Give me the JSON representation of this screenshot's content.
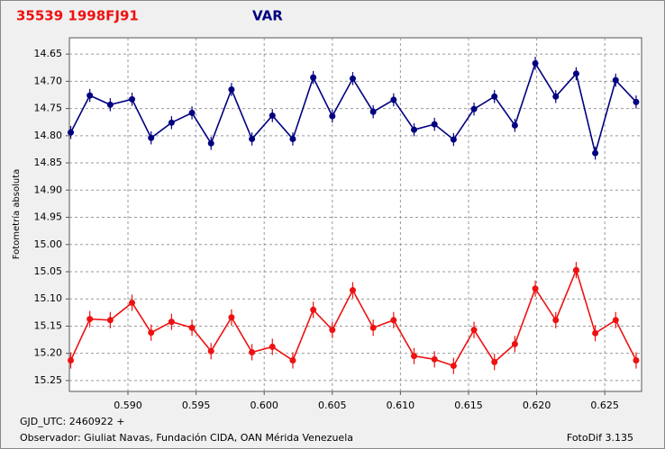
{
  "chart_data": {
    "type": "line",
    "title": "35539 1998FJ91",
    "subtitle": "VAR",
    "y_label": "Fotometría absoluta",
    "x_label": "GJD_UTC: 2460922 +",
    "footer_left": "Observador: Giuliat Navas, Fundación CIDA, OAN Mérida Venezuela",
    "footer_right": "FotoDif 3.135",
    "x": [
      0.5858,
      0.5872,
      0.5887,
      0.5903,
      0.5917,
      0.5932,
      0.5947,
      0.5961,
      0.5976,
      0.5991,
      0.6006,
      0.6021,
      0.6036,
      0.605,
      0.6065,
      0.608,
      0.6095,
      0.611,
      0.6125,
      0.6139,
      0.6154,
      0.6169,
      0.6184,
      0.6199,
      0.6214,
      0.6229,
      0.6243,
      0.6258,
      0.6273
    ],
    "series": [
      {
        "color": "#000080",
        "error": 0.012,
        "values": [
          14.794,
          14.726,
          14.743,
          14.733,
          14.804,
          14.776,
          14.758,
          14.814,
          14.715,
          14.806,
          14.763,
          14.806,
          14.693,
          14.764,
          14.695,
          14.756,
          14.734,
          14.789,
          14.779,
          14.807,
          14.751,
          14.728,
          14.781,
          14.667,
          14.728,
          14.686,
          14.832,
          14.698,
          14.738
        ]
      },
      {
        "color": "#ee1111",
        "error": 0.015,
        "values": [
          15.213,
          15.137,
          15.139,
          15.107,
          15.162,
          15.142,
          15.153,
          15.196,
          15.134,
          15.198,
          15.188,
          15.213,
          15.12,
          15.157,
          15.084,
          15.153,
          15.139,
          15.205,
          15.211,
          15.223,
          15.157,
          15.216,
          15.183,
          15.081,
          15.139,
          15.047,
          15.163,
          15.139,
          15.213
        ]
      }
    ],
    "xlim": [
      0.5857,
      0.6277
    ],
    "ylim": [
      14.62,
      15.27
    ],
    "y_inverted": true,
    "grid": true,
    "xticks": [
      {
        "value": 0.59,
        "label": "0.590"
      },
      0.595,
      {
        "value": 0.6,
        "label": "0.600"
      },
      0.605,
      {
        "value": 0.61,
        "label": "0.610"
      },
      0.615,
      {
        "value": 0.62,
        "label": "0.620"
      },
      0.625
    ],
    "yticks": [
      14.65,
      {
        "value": 14.7,
        "label": "14.70"
      },
      14.75,
      {
        "value": 14.8,
        "label": "14.80"
      },
      14.85,
      {
        "value": 14.9,
        "label": "14.90"
      },
      14.95,
      {
        "value": 15.0,
        "label": "15.00"
      },
      15.05,
      {
        "value": 15.1,
        "label": "15.10"
      },
      15.15,
      {
        "value": 15.2,
        "label": "15.20"
      },
      15.25
    ]
  }
}
